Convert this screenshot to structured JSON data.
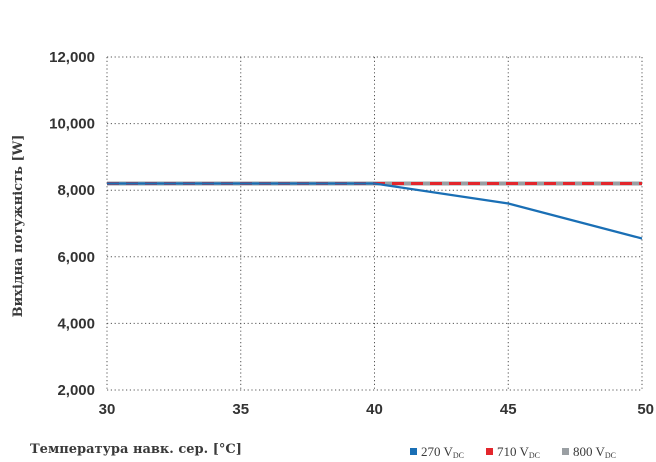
{
  "chart_data": {
    "type": "line",
    "xlabel": "Температура навк. сер. [°C]",
    "ylabel": "Вихідна потужність  [W]",
    "xlim": [
      30,
      50
    ],
    "ylim": [
      2000,
      12000
    ],
    "x_ticks": [
      30,
      35,
      40,
      45,
      50
    ],
    "y_ticks": [
      2000,
      4000,
      6000,
      8000,
      10000,
      12000
    ],
    "x_tick_labels": [
      "30",
      "35",
      "40",
      "45",
      "50"
    ],
    "y_tick_labels": [
      "2,000",
      "4,000",
      "6,000",
      "8,000",
      "10,000",
      "12,000"
    ],
    "grid": true,
    "legend_position": "bottom-right",
    "series": [
      {
        "name": "270 V",
        "name_sub": "DC",
        "color": "#1a6fb5",
        "dash": "solid",
        "x": [
          30,
          35,
          40,
          45,
          50
        ],
        "y": [
          8200,
          8200,
          8200,
          7600,
          6550
        ]
      },
      {
        "name": "710 V",
        "name_sub": "DC",
        "color": "#e3262c",
        "dash": "dashed",
        "x": [
          30,
          35,
          40,
          45,
          50
        ],
        "y": [
          8200,
          8200,
          8200,
          8200,
          8200
        ]
      },
      {
        "name": "800 V",
        "name_sub": "DC",
        "color": "#9a9fa3",
        "dash": "solid",
        "x": [
          30,
          35,
          40,
          45,
          50
        ],
        "y": [
          8200,
          8200,
          8200,
          8200,
          8200
        ]
      }
    ]
  }
}
